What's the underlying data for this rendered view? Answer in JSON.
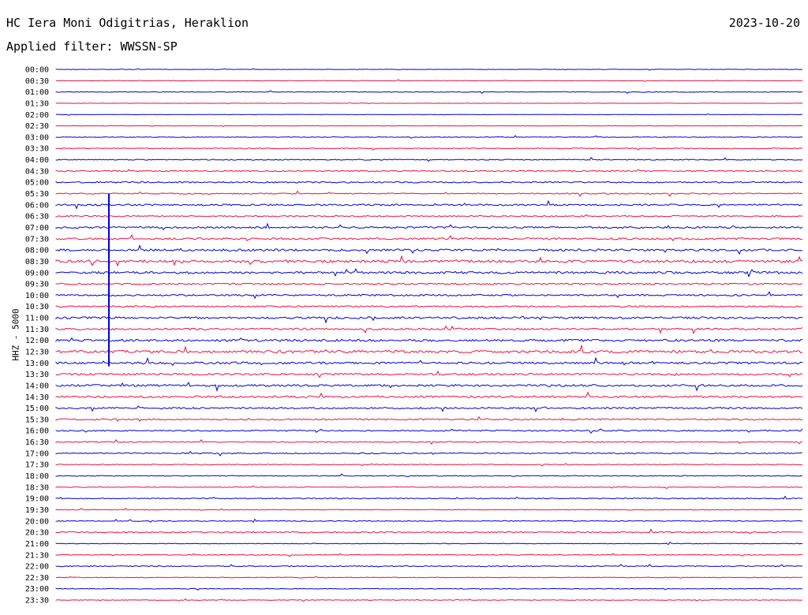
{
  "header": {
    "station": "HC Iera Moni Odigitrias, Heraklion",
    "date": "2023-10-20",
    "filter": "Applied filter: WWSSN-SP",
    "channel_label": "HHZ - 5000"
  },
  "colors": {
    "even_row": "#0000dd",
    "odd_row": "#ee1144",
    "background": "#ffffff"
  },
  "chart_data": {
    "type": "line",
    "ylabel": "HHZ - 5000",
    "grid": false,
    "row_minutes": 30,
    "rows": [
      "00:00",
      "00:30",
      "01:00",
      "01:30",
      "02:00",
      "02:30",
      "03:00",
      "03:30",
      "04:00",
      "04:30",
      "05:00",
      "05:30",
      "06:00",
      "06:30",
      "07:00",
      "07:30",
      "08:00",
      "08:30",
      "09:00",
      "09:30",
      "10:00",
      "10:30",
      "11:00",
      "11:30",
      "12:00",
      "12:30",
      "13:00",
      "13:30",
      "14:00",
      "14:30",
      "15:00",
      "15:30",
      "16:00",
      "16:30",
      "17:00",
      "17:30",
      "18:00",
      "18:30",
      "19:00",
      "19:30",
      "20:00",
      "20:30",
      "21:00",
      "21:30",
      "22:00",
      "22:30",
      "23:00",
      "23:30"
    ],
    "noise": [
      0.2,
      0.3,
      0.4,
      0.2,
      0.2,
      0.2,
      0.4,
      0.5,
      0.6,
      0.8,
      0.9,
      0.7,
      1.0,
      0.8,
      1.1,
      1.2,
      1.3,
      1.6,
      1.4,
      1.0,
      1.0,
      0.9,
      1.3,
      1.1,
      1.4,
      1.6,
      1.3,
      1.2,
      1.3,
      1.2,
      1.0,
      0.9,
      0.8,
      0.6,
      0.7,
      0.5,
      0.5,
      0.4,
      0.6,
      0.4,
      0.5,
      0.8,
      0.4,
      0.5,
      0.6,
      0.4,
      0.4,
      0.4
    ]
  }
}
